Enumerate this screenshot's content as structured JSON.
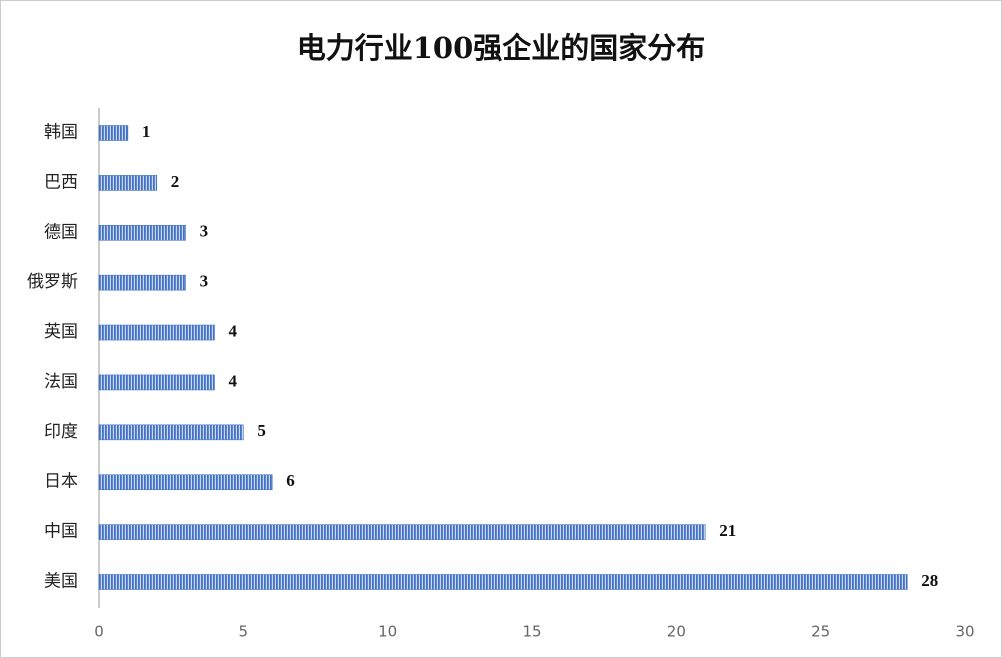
{
  "chart_data": {
    "type": "bar",
    "orientation": "horizontal",
    "title": "电力行业100强企业的国家分布",
    "categories": [
      "韩国",
      "巴西",
      "德国",
      "俄罗斯",
      "英国",
      "法国",
      "印度",
      "日本",
      "中国",
      "美国"
    ],
    "values": [
      1,
      2,
      3,
      3,
      4,
      4,
      5,
      6,
      21,
      28
    ],
    "color": "#4472c4",
    "xlim": [
      0,
      30
    ],
    "xticks": [
      0,
      5,
      10,
      15,
      20,
      25,
      30
    ],
    "grid": false
  }
}
